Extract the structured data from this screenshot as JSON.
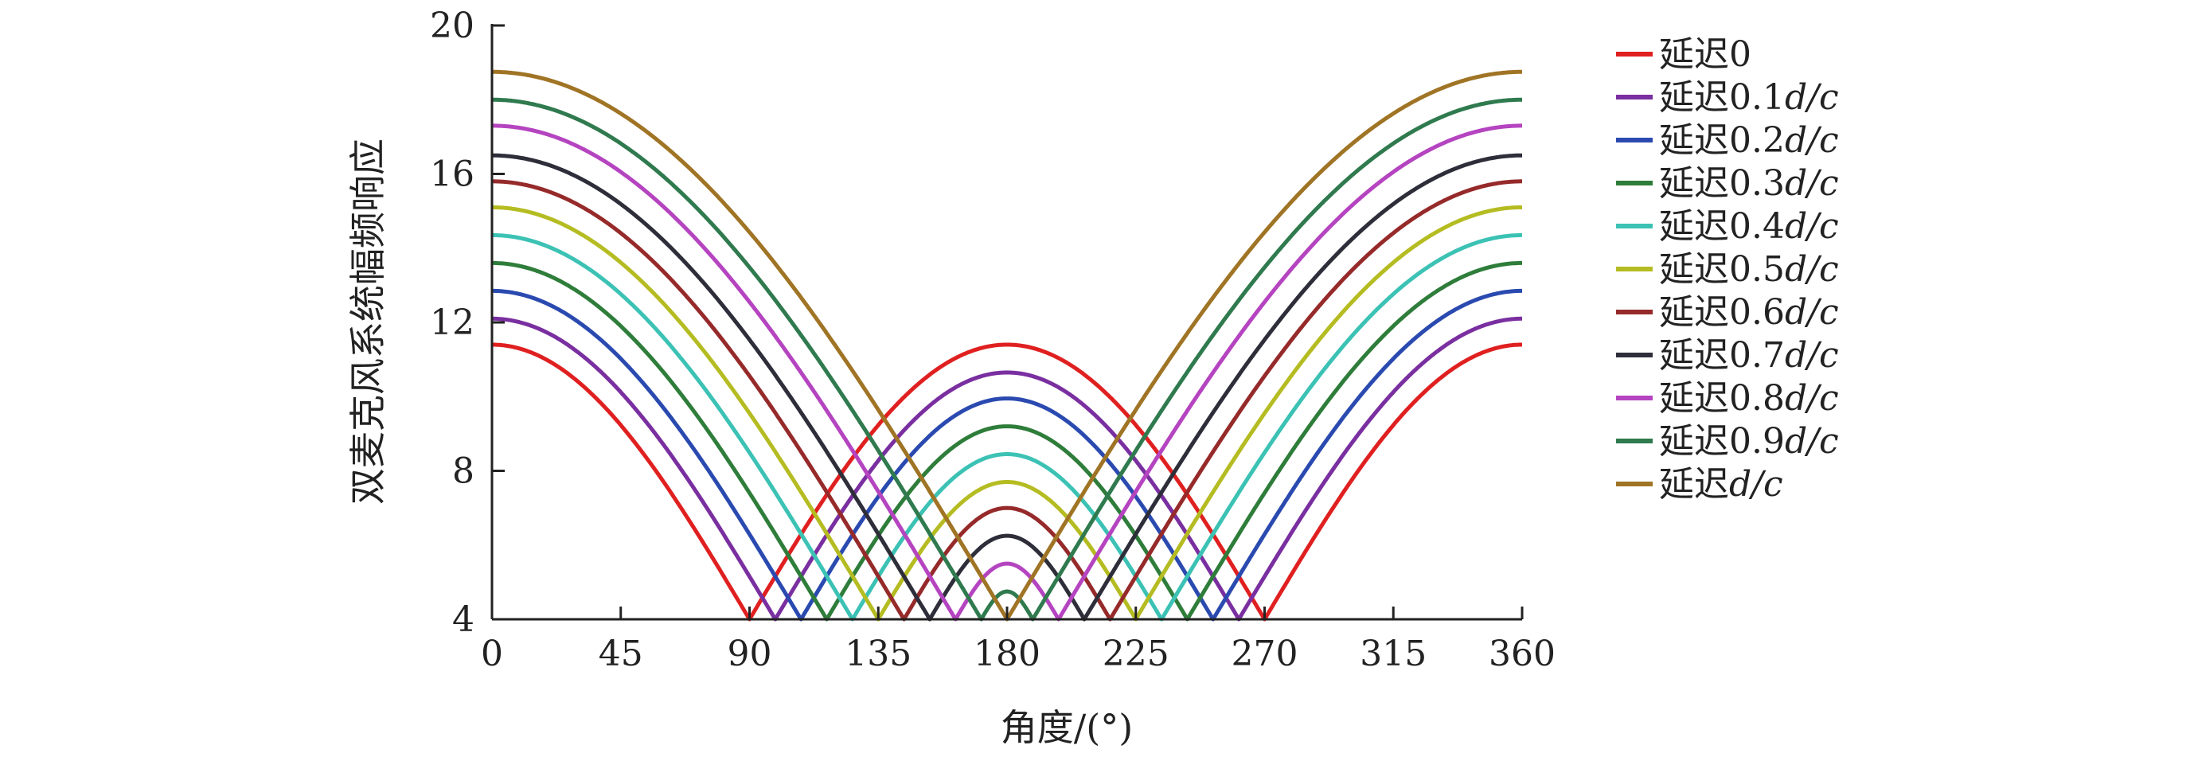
{
  "chart_data": {
    "type": "line",
    "xlabel": "角度/(°)",
    "ylabel": "双麦克风系统幅频响应",
    "xlim": [
      0,
      360
    ],
    "ylim": [
      4,
      20
    ],
    "xticks": [
      0,
      45,
      90,
      135,
      180,
      225,
      270,
      315,
      360
    ],
    "yticks": [
      4,
      8,
      12,
      16,
      20
    ],
    "x_tick_labels": [
      "0",
      "45",
      "90",
      "135",
      "180",
      "225",
      "270",
      "315",
      "360"
    ],
    "y_tick_labels": [
      "4",
      "8",
      "12",
      "16",
      "20"
    ],
    "legend_position": "right",
    "series": [
      {
        "name": "延迟0",
        "prefix": "延迟0",
        "italic": "",
        "color": "#e02020",
        "min_angle": 90,
        "peak0": 11.4,
        "peak180": 11.4
      },
      {
        "name": "延迟0.1d/c",
        "prefix": "延迟0.1",
        "italic": "d/c",
        "color": "#7a2fa0",
        "min_angle": 99,
        "peak0": 12.1,
        "peak180": 10.65
      },
      {
        "name": "延迟0.2d/c",
        "prefix": "延迟0.2",
        "italic": "d/c",
        "color": "#2a4ab0",
        "min_angle": 108,
        "peak0": 12.85,
        "peak180": 9.95
      },
      {
        "name": "延迟0.3d/c",
        "prefix": "延迟0.3",
        "italic": "d/c",
        "color": "#2e7d3a",
        "min_angle": 117,
        "peak0": 13.6,
        "peak180": 9.2
      },
      {
        "name": "延迟0.4d/c",
        "prefix": "延迟0.4",
        "italic": "d/c",
        "color": "#3cc2b4",
        "min_angle": 126,
        "peak0": 14.35,
        "peak180": 8.45
      },
      {
        "name": "延迟0.5d/c",
        "prefix": "延迟0.5",
        "italic": "d/c",
        "color": "#b5bc22",
        "min_angle": 135,
        "peak0": 15.1,
        "peak180": 7.7
      },
      {
        "name": "延迟0.6d/c",
        "prefix": "延迟0.6",
        "italic": "d/c",
        "color": "#962a2a",
        "min_angle": 144,
        "peak0": 15.8,
        "peak180": 7.0
      },
      {
        "name": "延迟0.7d/c",
        "prefix": "延迟0.7",
        "italic": "d/c",
        "color": "#2e2e3a",
        "min_angle": 153,
        "peak0": 16.5,
        "peak180": 6.25
      },
      {
        "name": "延迟0.8d/c",
        "prefix": "延迟0.8",
        "italic": "d/c",
        "color": "#b544c0",
        "min_angle": 162,
        "peak0": 17.3,
        "peak180": 5.5
      },
      {
        "name": "延迟0.9d/c",
        "prefix": "延迟0.9",
        "italic": "d/c",
        "color": "#2f7a4e",
        "min_angle": 171,
        "peak0": 18.0,
        "peak180": 4.75
      },
      {
        "name": "延迟d/c",
        "prefix": "延迟",
        "italic": "d/c",
        "color": "#a07425",
        "min_angle": 180,
        "peak0": 18.75,
        "peak180": 4.0
      }
    ]
  }
}
